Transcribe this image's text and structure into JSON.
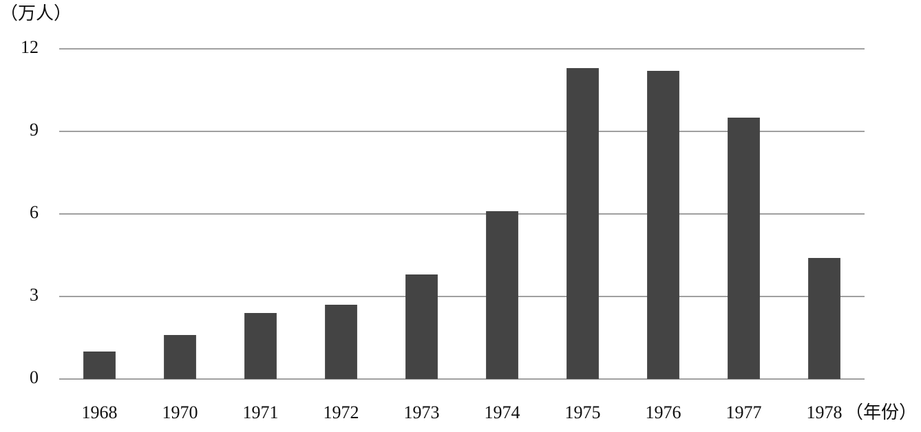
{
  "chart_data": {
    "type": "bar",
    "y_label": "（万人）",
    "x_label": "（年份）",
    "categories": [
      "1968",
      "1970",
      "1971",
      "1972",
      "1973",
      "1974",
      "1975",
      "1976",
      "1977",
      "1978"
    ],
    "values": [
      1.0,
      1.6,
      2.4,
      2.7,
      3.8,
      6.1,
      11.3,
      11.2,
      9.5,
      4.4
    ],
    "color": "#444444",
    "ylim": [
      0,
      12
    ],
    "yticks": [
      0,
      3,
      6,
      9,
      12
    ],
    "grid": true
  }
}
